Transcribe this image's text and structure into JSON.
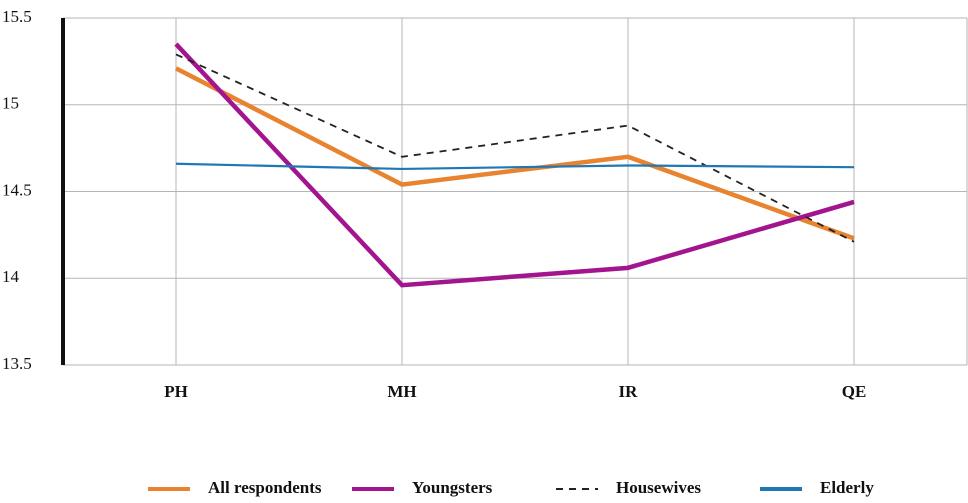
{
  "chart_data": {
    "type": "line",
    "categories": [
      "PH",
      "MH",
      "IR",
      "QE"
    ],
    "series": [
      {
        "name": "All respondents",
        "color": "#e8832f",
        "values": [
          15.21,
          14.54,
          14.7,
          14.23
        ]
      },
      {
        "name": "Youngsters",
        "color": "#a3148f",
        "values": [
          15.35,
          13.96,
          14.06,
          14.44
        ]
      },
      {
        "name": "Housewives",
        "color": "#222222",
        "line_style": "dashed",
        "values": [
          15.29,
          14.7,
          14.88,
          14.21
        ]
      },
      {
        "name": "Elderly",
        "color": "#1f78b4",
        "values": [
          14.66,
          14.63,
          14.65,
          14.64
        ]
      }
    ],
    "ylim": [
      13.5,
      15.5
    ],
    "yticks": [
      13.5,
      14,
      14.5,
      15,
      15.5
    ],
    "grid": true,
    "legend": "bottom"
  }
}
